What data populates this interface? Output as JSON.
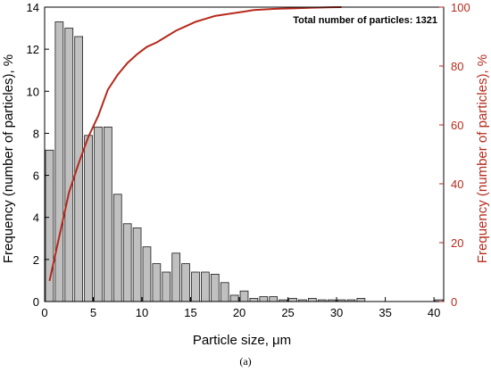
{
  "chart_data": {
    "type": "bar",
    "annotation": "Total number of particles: 1321",
    "caption": "(a)",
    "xlabel": "Particle size, μm",
    "ylabel_left": "Frequency (number of particles), %",
    "ylabel_right": "Frequency (number of particles), %",
    "xlim": [
      0,
      41
    ],
    "ylim_left": [
      0,
      14
    ],
    "ylim_right": [
      0,
      100
    ],
    "x_ticks": [
      0,
      5,
      10,
      15,
      20,
      25,
      30,
      35,
      40
    ],
    "y_left_ticks": [
      0,
      2,
      4,
      6,
      8,
      10,
      12,
      14
    ],
    "y_right_ticks": [
      0,
      20,
      40,
      60,
      80,
      100
    ],
    "bar_width": 1,
    "grid": false,
    "series": [
      {
        "type": "bar",
        "axis": "left",
        "color": "#c0c0c0",
        "edge_color": "#1a1a1a",
        "x": [
          0.5,
          1.5,
          2.5,
          3.5,
          4.5,
          5.5,
          6.5,
          7.5,
          8.5,
          9.5,
          10.5,
          11.5,
          12.5,
          13.5,
          14.5,
          15.5,
          16.5,
          17.5,
          18.5,
          19.5,
          20.5,
          21.5,
          22.5,
          23.5,
          24.5,
          25.5,
          26.5,
          27.5,
          28.5,
          29.5,
          30.5,
          31.5,
          32.5,
          33.5,
          34.5,
          35.5,
          36.5,
          37.5,
          38.5,
          39.5,
          40.5
        ],
        "values": [
          7.2,
          13.3,
          13.0,
          12.6,
          7.9,
          8.3,
          8.3,
          5.1,
          3.7,
          3.5,
          2.6,
          1.8,
          1.4,
          2.3,
          1.8,
          1.4,
          1.4,
          1.3,
          0.9,
          0.3,
          0.5,
          0.15,
          0.23,
          0.23,
          0.08,
          0.15,
          0.08,
          0.15,
          0.08,
          0.08,
          0.08,
          0.08,
          0.15,
          0.0,
          0.0,
          0.0,
          0.0,
          0.0,
          0.0,
          0.0,
          0.08
        ]
      },
      {
        "type": "line",
        "axis": "right",
        "color": "#b52a1c",
        "x": [
          0.5,
          1.5,
          2.5,
          3.5,
          4.5,
          5.5,
          6.5,
          7.5,
          8.5,
          9.5,
          10.5,
          11.5,
          12.5,
          13.5,
          14.5,
          15.5,
          16.5,
          17.5,
          18.5,
          19.5,
          20.5,
          21.5,
          22.5,
          23.5,
          24.5,
          25.5,
          26.5,
          27.5,
          28.5,
          29.5,
          30.5
        ],
        "values": [
          7,
          22,
          37,
          47,
          56,
          63,
          72,
          77,
          81,
          84,
          86.5,
          88,
          90,
          92,
          93.5,
          95,
          96,
          97,
          97.5,
          98,
          98.5,
          99,
          99.2,
          99.4,
          99.5,
          99.6,
          99.7,
          99.8,
          99.9,
          99.95,
          100
        ]
      }
    ]
  }
}
